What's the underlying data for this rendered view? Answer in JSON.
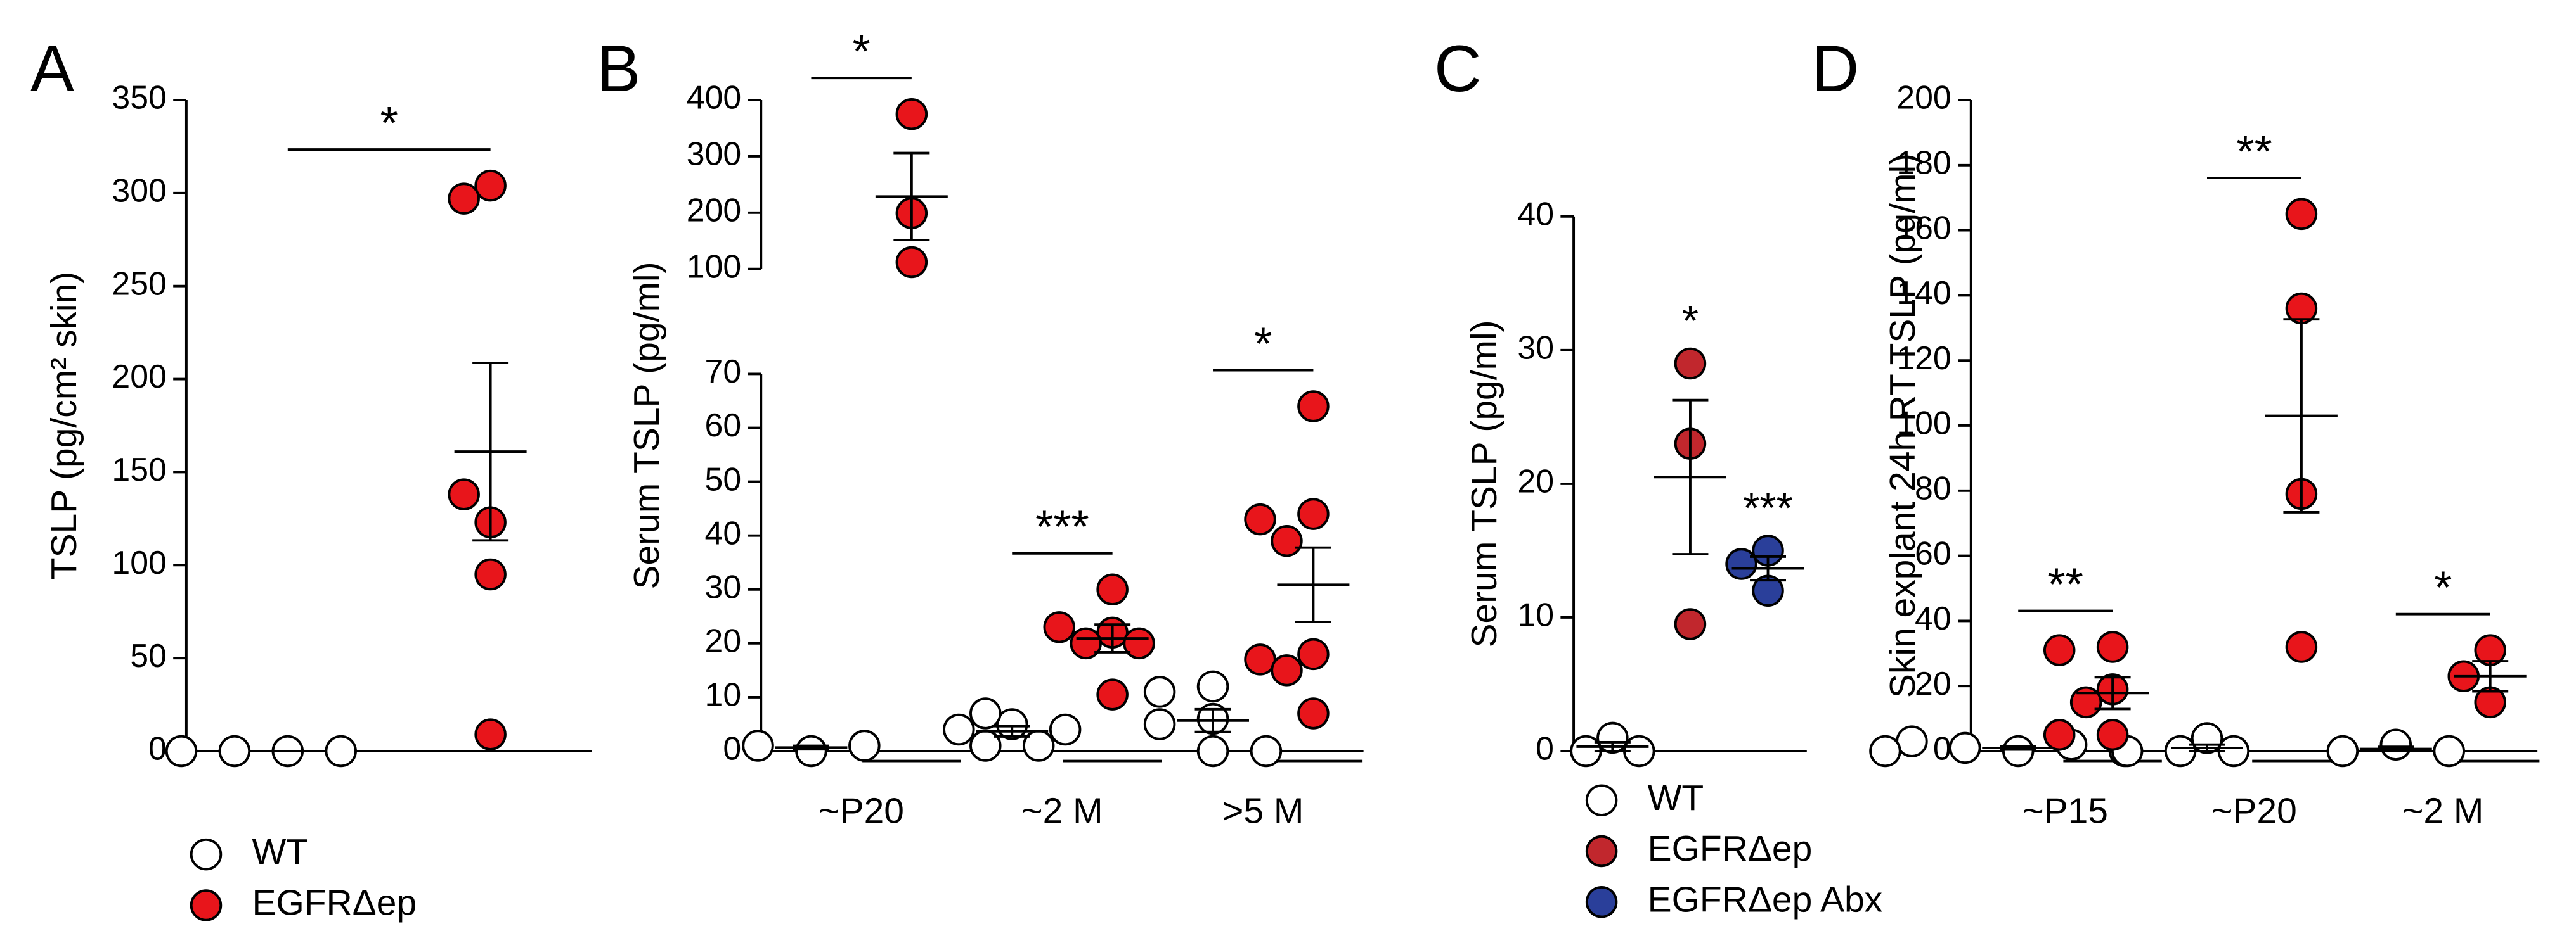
{
  "chart_data": [
    {
      "type": "strip",
      "label": "A",
      "ylabel": "TSLP (pg/cm² skin)",
      "ylim": [
        0,
        350
      ],
      "yticks": [
        0,
        50,
        100,
        150,
        200,
        250,
        300,
        350
      ],
      "series": [
        {
          "name": "WT",
          "color": "#ffffff",
          "values": [
            [
              0,
              0,
              0,
              0
            ]
          ]
        },
        {
          "name": "EGFRΔep",
          "color": "#e8151b",
          "values": [
            [
              304,
              297,
              123,
              138,
              95,
              9
            ]
          ]
        }
      ],
      "annotations": [
        {
          "text": "*",
          "category": 0
        }
      ]
    },
    {
      "type": "strip",
      "label": "B",
      "ylabel": "Serum TSLP (pg/ml)",
      "ylim": [
        0,
        70
      ],
      "yticks": [
        0,
        10,
        20,
        30,
        40,
        50,
        60,
        70
      ],
      "ylim_upper": [
        100,
        400
      ],
      "yticks_upper": [
        100,
        200,
        300,
        400
      ],
      "categories": [
        "~P20",
        "~2 M",
        ">5 M"
      ],
      "series": [
        {
          "color": "#ffffff",
          "values": [
            [
              0,
              1,
              1
            ],
            [
              5,
              4,
              7,
              4,
              1,
              1
            ],
            [
              12,
              11,
              6,
              5,
              0,
              0
            ]
          ]
        },
        {
          "color": "#e8151b",
          "values": [
            [
              375,
              199,
              112
            ],
            [
              30,
              22,
              23,
              20,
              20,
              10.5
            ],
            [
              64,
              44,
              43,
              39,
              18,
              17,
              15,
              7
            ]
          ]
        }
      ],
      "annotations": [
        {
          "text": "*",
          "category": 0
        },
        {
          "text": "***",
          "category": 1
        },
        {
          "text": "*",
          "category": 2
        }
      ]
    },
    {
      "type": "strip",
      "label": "C",
      "ylabel": "Serum TSLP (pg/ml)",
      "ylim": [
        0,
        40
      ],
      "yticks": [
        0,
        10,
        20,
        30,
        40
      ],
      "series": [
        {
          "name": "WT",
          "color": "#ffffff",
          "values": [
            [
              1,
              0,
              0
            ]
          ]
        },
        {
          "name": "EGFRΔep",
          "color": "#c1272d",
          "values": [
            [
              29,
              23,
              9.5
            ]
          ]
        },
        {
          "name": "EGFRΔep Abx",
          "color": "#2a3f9a",
          "values": [
            [
              15,
              14,
              12
            ]
          ]
        }
      ],
      "annotations": [
        {
          "text": "*",
          "category": 0,
          "series": 1
        },
        {
          "text": "***",
          "category": 0,
          "series": 2
        }
      ]
    },
    {
      "type": "strip",
      "label": "D",
      "ylabel": "Skin explant 24h RT TSLP (pg/ml)",
      "ylim": [
        0,
        200
      ],
      "yticks": [
        0,
        20,
        40,
        60,
        80,
        100,
        120,
        140,
        160,
        180,
        200
      ],
      "categories": [
        "~P15",
        "~P20",
        "~2 M"
      ],
      "series": [
        {
          "color": "#ffffff",
          "values": [
            [
              0,
              1,
              2,
              3,
              0,
              0
            ],
            [
              4,
              0,
              0,
              0
            ],
            [
              2,
              0,
              0
            ]
          ]
        },
        {
          "color": "#e8151b",
          "values": [
            [
              32,
              31,
              19,
              15,
              5,
              5
            ],
            [
              165,
              136,
              79,
              32
            ],
            [
              31,
              23,
              15
            ]
          ]
        }
      ],
      "annotations": [
        {
          "text": "**",
          "category": 0
        },
        {
          "text": "**",
          "category": 1
        },
        {
          "text": "*",
          "category": 2
        }
      ]
    }
  ]
}
